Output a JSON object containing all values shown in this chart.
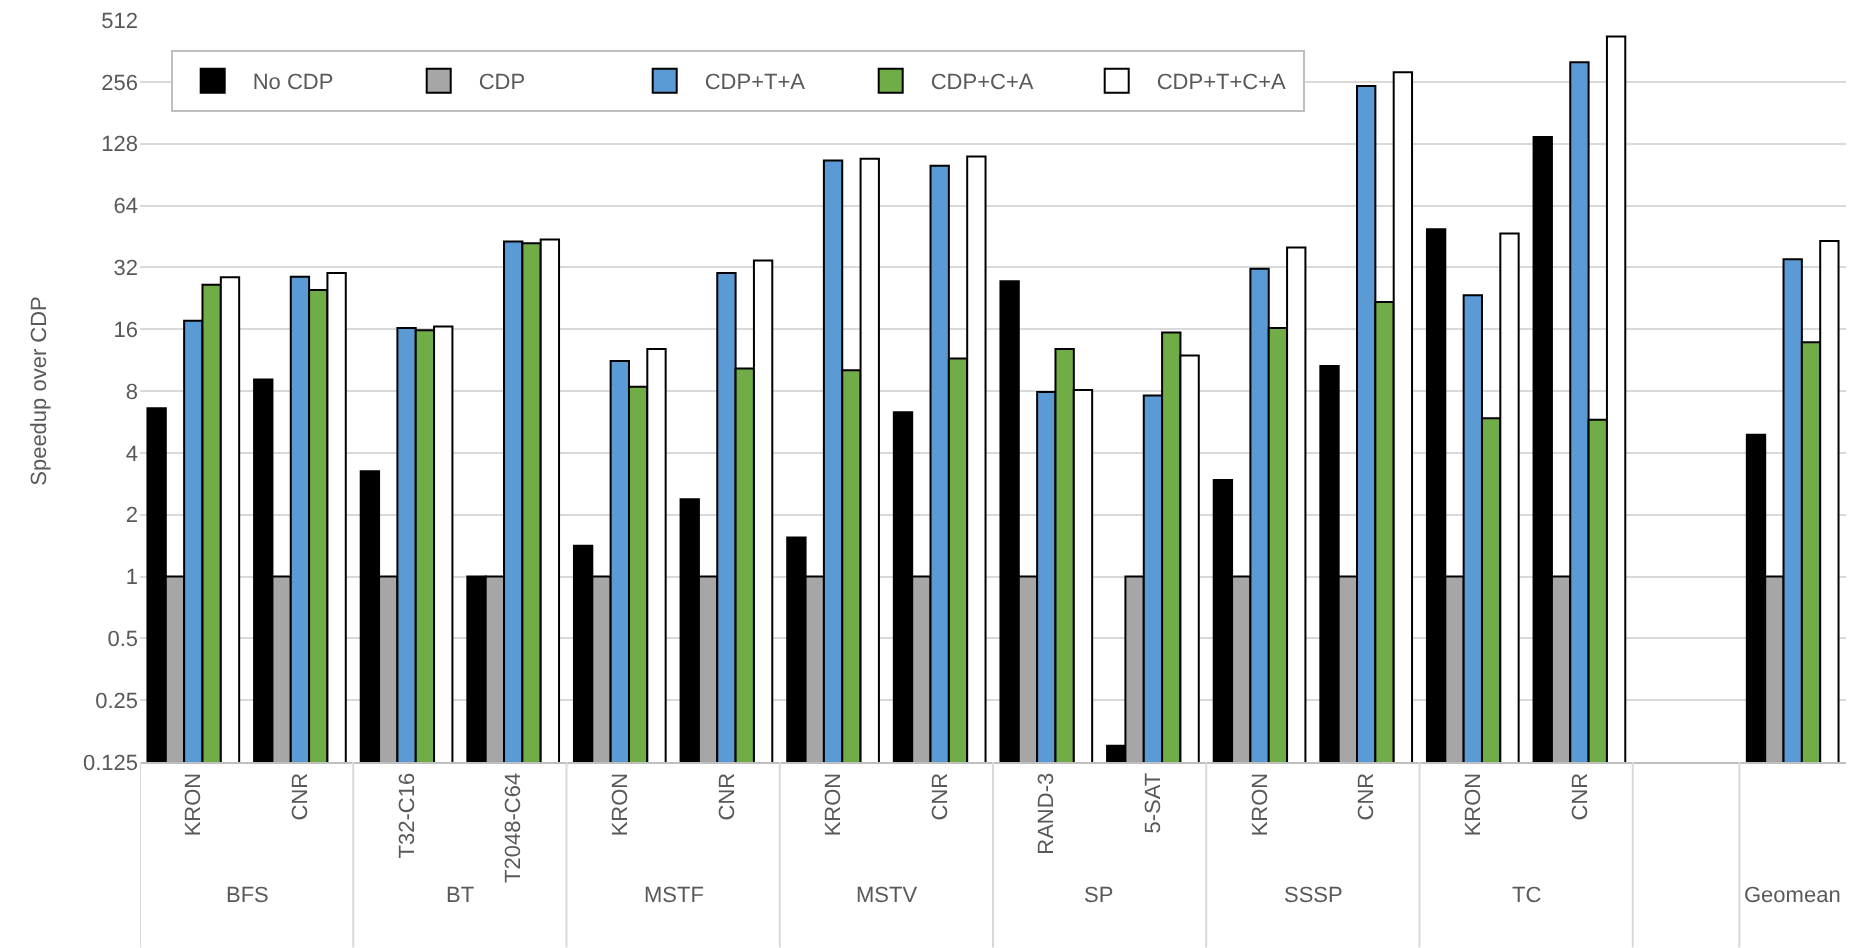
{
  "chart_data": {
    "type": "bar",
    "ylabel": "Speedup over CDP",
    "categories": [
      "KRON",
      "CNR",
      "T32-C16",
      "T2048-C64",
      "KRON",
      "CNR",
      "KRON",
      "CNR",
      "RAND-3",
      "5-SAT",
      "KRON",
      "CNR",
      "KRON",
      "CNR",
      null,
      null
    ],
    "annotations": [
      "BFS",
      "BT",
      "MSTF",
      "MSTV",
      "SP",
      "SSSP",
      "TC",
      "Geomean"
    ],
    "series": [
      {
        "name": "No CDP",
        "color": "#000000",
        "values": [
          6.6,
          9.1,
          3.25,
          1,
          1.41,
          2.38,
          1.55,
          6.3,
          27.4,
          0.15,
          2.95,
          10.6,
          49,
          138,
          null,
          4.9
        ]
      },
      {
        "name": "CDP",
        "color": "#a6a6a6",
        "values": [
          1,
          1,
          1,
          1,
          1,
          1,
          1,
          1,
          1,
          1,
          1,
          1,
          1,
          1,
          null,
          1
        ]
      },
      {
        "name": "CDP+T+A",
        "color": "#5b9bd5",
        "values": [
          17.6,
          28.8,
          16.2,
          42.8,
          11.2,
          30,
          106,
          100,
          7.9,
          7.6,
          31.5,
          244,
          23.4,
          319,
          null,
          35
        ]
      },
      {
        "name": "CDP+C+A",
        "color": "#70ad47",
        "values": [
          26.3,
          24.8,
          15.8,
          41.9,
          8.4,
          10.3,
          10.1,
          11.5,
          12.8,
          15.4,
          16.2,
          21.7,
          5.9,
          5.8,
          null,
          13.8
        ]
      },
      {
        "name": "CDP+T+C+A",
        "color": "#ffffff",
        "values": [
          28.6,
          30,
          16.5,
          43.7,
          12.8,
          34.5,
          108,
          111,
          8.1,
          11.9,
          40,
          285,
          46.8,
          425,
          null,
          43
        ]
      }
    ],
    "log": true,
    "ylim": [
      0.125,
      512
    ],
    "yticks": [
      0.125,
      0.25,
      0.5,
      1,
      2,
      4,
      8,
      16,
      32,
      64,
      128,
      256,
      512
    ],
    "grid": "y",
    "legend": "top"
  }
}
